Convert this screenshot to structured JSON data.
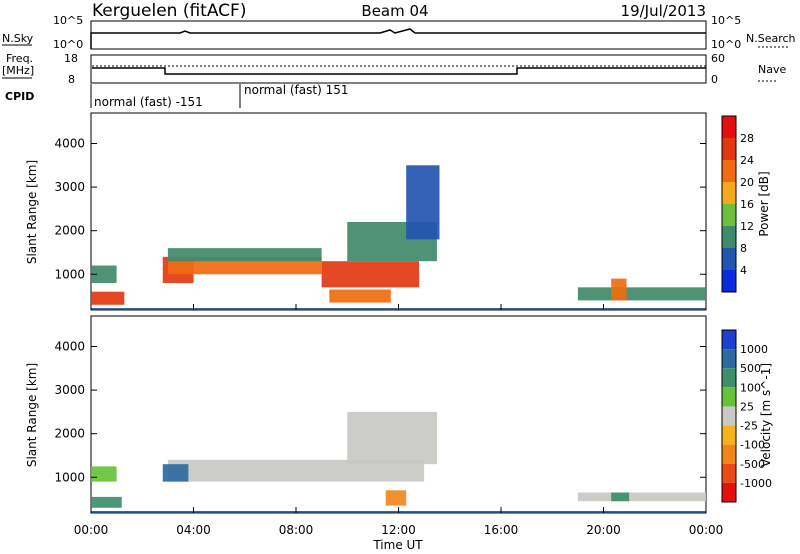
{
  "header": {
    "station": "Kerguelen (fitACF)",
    "beam": "Beam 04",
    "date": "19/Jul/2013"
  },
  "strip": {
    "nsky_label": "N.Sky",
    "nsearch_label": "N.Search",
    "freq_label": "Freq.",
    "freq_unit": "[MHz]",
    "nave_label": "Nave",
    "cpid_label": "CPID",
    "nsky_ticks": [
      "10^5",
      "10^0"
    ],
    "nsearch_ticks": [
      "10^5",
      "10^0"
    ],
    "freq_ticks": [
      "18",
      "8"
    ],
    "nave_ticks": [
      "60",
      "0"
    ],
    "cpid_1": "normal (fast) -151",
    "cpid_2": "normal (fast) 151"
  },
  "chart_data": [
    {
      "type": "heatmap",
      "ylabel": "Slant Range [km]",
      "xlabel": "Time UT",
      "y_ticks": [
        1000,
        2000,
        3000,
        4000
      ],
      "ylim": [
        180,
        4700
      ],
      "x_ticks": [
        "00:00",
        "04:00",
        "08:00",
        "12:00",
        "16:00",
        "20:00",
        "00:00"
      ],
      "colorbar": {
        "label": "Power [dB]",
        "ticks": [
          "4",
          "8",
          "12",
          "16",
          "20",
          "24",
          "28"
        ],
        "colors": [
          "#0a2be0",
          "#2255b0",
          "#3f8a6a",
          "#6fbe3c",
          "#f4a81a",
          "#ef6d10",
          "#e23812",
          "#e41010"
        ]
      },
      "regions": [
        {
          "t0": 0.0,
          "t1": 1.3,
          "r0": 300,
          "r1": 600,
          "level": 24
        },
        {
          "t0": 0.0,
          "t1": 1.0,
          "r0": 800,
          "r1": 1200,
          "level": 10
        },
        {
          "t0": 2.8,
          "t1": 4.0,
          "r0": 800,
          "r1": 1400,
          "level": 26
        },
        {
          "t0": 3.0,
          "t1": 9.0,
          "r0": 1000,
          "r1": 1400,
          "level": 20
        },
        {
          "t0": 3.0,
          "t1": 9.0,
          "r0": 1300,
          "r1": 1600,
          "level": 8
        },
        {
          "t0": 9.0,
          "t1": 12.8,
          "r0": 700,
          "r1": 1300,
          "level": 24
        },
        {
          "t0": 9.3,
          "t1": 11.7,
          "r0": 350,
          "r1": 650,
          "level": 22
        },
        {
          "t0": 10.0,
          "t1": 13.5,
          "r0": 1300,
          "r1": 2200,
          "level": 10
        },
        {
          "t0": 12.3,
          "t1": 13.6,
          "r0": 1800,
          "r1": 3500,
          "level": 6
        },
        {
          "t0": 19.0,
          "t1": 24.0,
          "r0": 400,
          "r1": 700,
          "level": 8
        },
        {
          "t0": 20.3,
          "t1": 20.9,
          "r0": 400,
          "r1": 900,
          "level": 22
        }
      ]
    },
    {
      "type": "heatmap",
      "ylabel": "Slant Range [km]",
      "xlabel": "Time UT",
      "y_ticks": [
        1000,
        2000,
        3000,
        4000
      ],
      "ylim": [
        180,
        4700
      ],
      "x_ticks": [
        "00:00",
        "04:00",
        "08:00",
        "12:00",
        "16:00",
        "20:00",
        "00:00"
      ],
      "colorbar": {
        "label": "Velocity [m s^-1]",
        "ticks": [
          "1000",
          "500",
          "100",
          "25",
          "-25",
          "-100",
          "-500",
          "-1000"
        ],
        "colors": [
          "#1f3fd0",
          "#2d6aa0",
          "#3d8f6a",
          "#66c23a",
          "#c8c8c4",
          "#f7b41a",
          "#f2851a",
          "#ec4a14",
          "#e41010"
        ]
      },
      "regions": [
        {
          "t0": 0.0,
          "t1": 1.2,
          "r0": 300,
          "r1": 550,
          "level": 100
        },
        {
          "t0": 0.0,
          "t1": 1.0,
          "r0": 900,
          "r1": 1250,
          "level": 25
        },
        {
          "t0": 3.0,
          "t1": 13.0,
          "r0": 900,
          "r1": 1400,
          "level": 0
        },
        {
          "t0": 2.8,
          "t1": 3.8,
          "r0": 900,
          "r1": 1300,
          "level": 300
        },
        {
          "t0": 11.5,
          "t1": 12.3,
          "r0": 350,
          "r1": 700,
          "level": -300
        },
        {
          "t0": 10.0,
          "t1": 13.5,
          "r0": 1300,
          "r1": 2500,
          "level": 0
        },
        {
          "t0": 19.0,
          "t1": 24.0,
          "r0": 450,
          "r1": 650,
          "level": 0
        },
        {
          "t0": 20.3,
          "t1": 21.0,
          "r0": 450,
          "r1": 650,
          "level": 100
        }
      ]
    }
  ]
}
